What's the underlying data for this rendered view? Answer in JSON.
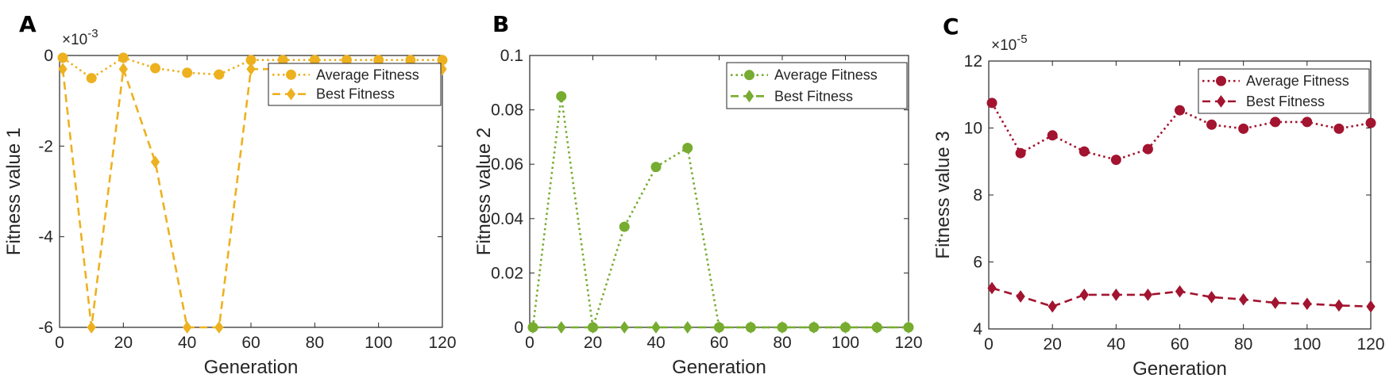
{
  "chart_data": [
    {
      "type": "line",
      "panel_label": "A",
      "xlabel": "Generation",
      "ylabel": "Fitness value 1",
      "exponent_label": "×10",
      "exponent_power": "-3",
      "xlim": [
        0,
        120
      ],
      "ylim": [
        -6,
        0
      ],
      "xticks": [
        0,
        20,
        40,
        60,
        80,
        100,
        120
      ],
      "yticks": [
        -6,
        -4,
        -2,
        0
      ],
      "color": "#EDB120",
      "legend_position": "top-right",
      "x": [
        1,
        10,
        20,
        30,
        40,
        50,
        60,
        70,
        80,
        90,
        100,
        110,
        120
      ],
      "series": [
        {
          "name": "Average Fitness",
          "style": "dotted",
          "marker": "circle",
          "values": [
            -0.05,
            -0.5,
            -0.05,
            -0.28,
            -0.38,
            -0.42,
            -0.1,
            -0.1,
            -0.1,
            -0.1,
            -0.1,
            -0.1,
            -0.1
          ]
        },
        {
          "name": "Best Fitness",
          "style": "dashed",
          "marker": "diamond",
          "values": [
            -0.3,
            -6,
            -0.3,
            -2.35,
            -6,
            -6,
            -0.3,
            -0.3,
            -0.3,
            -0.3,
            -0.3,
            -0.3,
            -0.3
          ]
        }
      ]
    },
    {
      "type": "line",
      "panel_label": "B",
      "xlabel": "Generation",
      "ylabel": "Fitness value 2",
      "exponent_label": "",
      "exponent_power": "",
      "xlim": [
        0,
        120
      ],
      "ylim": [
        0,
        0.1
      ],
      "xticks": [
        0,
        20,
        40,
        60,
        80,
        100,
        120
      ],
      "yticks": [
        0,
        0.02,
        0.04,
        0.06,
        0.08,
        0.1
      ],
      "color": "#77AC30",
      "legend_position": "top-right",
      "x": [
        1,
        10,
        20,
        30,
        40,
        50,
        60,
        70,
        80,
        90,
        100,
        110,
        120
      ],
      "series": [
        {
          "name": "Average Fitness",
          "style": "dotted",
          "marker": "circle",
          "values": [
            0,
            0.085,
            0,
            0.037,
            0.059,
            0.066,
            0,
            0,
            0,
            0,
            0,
            0,
            0
          ]
        },
        {
          "name": "Best Fitness",
          "style": "dashed",
          "marker": "diamond",
          "values": [
            0,
            0,
            0,
            0,
            0,
            0,
            0,
            0,
            0,
            0,
            0,
            0,
            0
          ]
        }
      ]
    },
    {
      "type": "line",
      "panel_label": "C",
      "xlabel": "Generation",
      "ylabel": "Fitness value 3",
      "exponent_label": "×10",
      "exponent_power": "-5",
      "xlim": [
        0,
        120
      ],
      "ylim": [
        4,
        12
      ],
      "xticks": [
        0,
        20,
        40,
        60,
        80,
        100,
        120
      ],
      "yticks": [
        4,
        6,
        8,
        10,
        12
      ],
      "color": "#A2142F",
      "legend_position": "top-right",
      "x": [
        1,
        10,
        20,
        30,
        40,
        50,
        60,
        70,
        80,
        90,
        100,
        110,
        120
      ],
      "series": [
        {
          "name": "Average Fitness",
          "style": "dotted",
          "marker": "circle",
          "values": [
            10.75,
            9.25,
            9.78,
            9.3,
            9.05,
            9.37,
            10.53,
            10.1,
            9.98,
            10.18,
            10.18,
            9.98,
            10.15
          ]
        },
        {
          "name": "Best Fitness",
          "style": "dashed",
          "marker": "diamond",
          "values": [
            5.22,
            4.97,
            4.67,
            5.02,
            5.02,
            5.02,
            5.12,
            4.95,
            4.88,
            4.78,
            4.75,
            4.7,
            4.67
          ]
        }
      ]
    }
  ]
}
